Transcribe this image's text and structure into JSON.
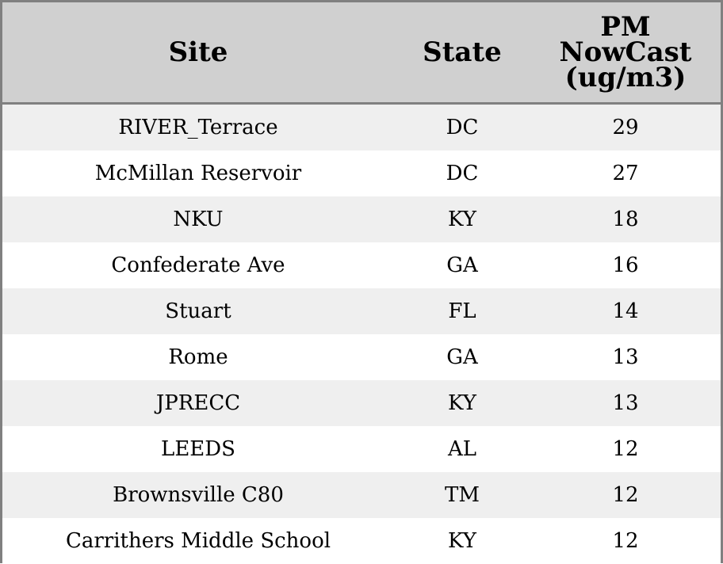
{
  "chart_data": {
    "type": "table",
    "columns": [
      "Site",
      "State",
      "PM NowCast (ug/m3)"
    ],
    "header_lines": {
      "site": "Site",
      "state": "State",
      "pm_line1": "PM",
      "pm_line2": "NowCast",
      "pm_line3": "(ug/m3)"
    },
    "rows": [
      {
        "site": "RIVER_Terrace",
        "state": "DC",
        "pm": "29"
      },
      {
        "site": "McMillan Reservoir",
        "state": "DC",
        "pm": "27"
      },
      {
        "site": "NKU",
        "state": "KY",
        "pm": "18"
      },
      {
        "site": "Confederate Ave",
        "state": "GA",
        "pm": "16"
      },
      {
        "site": "Stuart",
        "state": "FL",
        "pm": "14"
      },
      {
        "site": "Rome",
        "state": "GA",
        "pm": "13"
      },
      {
        "site": "JPRECC",
        "state": "KY",
        "pm": "13"
      },
      {
        "site": "LEEDS",
        "state": "AL",
        "pm": "12"
      },
      {
        "site": "Brownsville C80",
        "state": "TM",
        "pm": "12"
      },
      {
        "site": "Carrithers Middle School",
        "state": "KY",
        "pm": "12"
      }
    ],
    "colors": {
      "header_bg": "#d0d0d0",
      "border": "#808080",
      "row_odd": "#efefef",
      "row_even": "#ffffff"
    }
  }
}
